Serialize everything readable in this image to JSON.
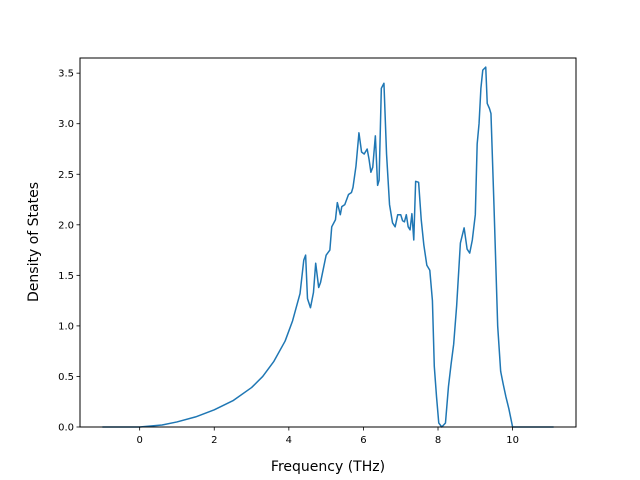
{
  "chart_data": {
    "type": "line",
    "title": "",
    "xlabel": "Frequency (THz)",
    "ylabel": "Density of States",
    "xlim": [
      -1.6,
      11.7
    ],
    "ylim": [
      0,
      3.5
    ],
    "ylim_display": [
      0,
      3.65
    ],
    "xticks": [
      0,
      2,
      4,
      6,
      8,
      10
    ],
    "yticks": [
      0.0,
      0.5,
      1.0,
      1.5,
      2.0,
      2.5,
      3.0,
      3.5
    ],
    "xtick_labels": [
      "0",
      "2",
      "4",
      "6",
      "8",
      "10"
    ],
    "ytick_labels": [
      "0.0",
      "0.5",
      "1.0",
      "1.5",
      "2.0",
      "2.5",
      "3.0",
      "3.5"
    ],
    "grid": false,
    "series": [
      {
        "color": "#1f77b4",
        "x": [
          -1.0,
          -0.5,
          0.0,
          0.3,
          0.6,
          1.0,
          1.5,
          2.0,
          2.5,
          3.0,
          3.3,
          3.6,
          3.9,
          4.1,
          4.3,
          4.4,
          4.45,
          4.5,
          4.58,
          4.66,
          4.72,
          4.8,
          4.85,
          4.9,
          5.0,
          5.1,
          5.15,
          5.25,
          5.3,
          5.38,
          5.42,
          5.5,
          5.6,
          5.68,
          5.72,
          5.8,
          5.88,
          5.95,
          6.02,
          6.1,
          6.15,
          6.2,
          6.25,
          6.32,
          6.38,
          6.42,
          6.48,
          6.55,
          6.62,
          6.7,
          6.78,
          6.85,
          6.92,
          7.0,
          7.05,
          7.1,
          7.15,
          7.2,
          7.25,
          7.3,
          7.35,
          7.4,
          7.48,
          7.55,
          7.62,
          7.7,
          7.78,
          7.85,
          7.9,
          7.96,
          8.02,
          8.1,
          8.2,
          8.28,
          8.35,
          8.42,
          8.5,
          8.6,
          8.7,
          8.78,
          8.85,
          8.92,
          9.0,
          9.05,
          9.1,
          9.15,
          9.2,
          9.28,
          9.32,
          9.38,
          9.42,
          9.5,
          9.55,
          9.6,
          9.68,
          9.75,
          9.82,
          9.9,
          10.0,
          10.1,
          10.2,
          10.5,
          11.1
        ],
        "y": [
          0.0,
          0.0,
          0.0,
          0.01,
          0.02,
          0.05,
          0.1,
          0.17,
          0.26,
          0.39,
          0.5,
          0.65,
          0.85,
          1.05,
          1.32,
          1.65,
          1.7,
          1.27,
          1.18,
          1.33,
          1.62,
          1.38,
          1.43,
          1.52,
          1.7,
          1.75,
          1.98,
          2.05,
          2.22,
          2.1,
          2.18,
          2.2,
          2.3,
          2.32,
          2.37,
          2.58,
          2.91,
          2.72,
          2.7,
          2.75,
          2.65,
          2.52,
          2.57,
          2.88,
          2.39,
          2.44,
          3.35,
          3.4,
          2.7,
          2.2,
          2.02,
          1.98,
          2.1,
          2.1,
          2.04,
          2.03,
          2.1,
          1.98,
          1.95,
          2.11,
          1.85,
          2.43,
          2.42,
          2.05,
          1.8,
          1.6,
          1.55,
          1.25,
          0.6,
          0.3,
          0.04,
          0.0,
          0.04,
          0.4,
          0.62,
          0.82,
          1.2,
          1.82,
          1.97,
          1.76,
          1.72,
          1.85,
          2.1,
          2.8,
          3.0,
          3.35,
          3.53,
          3.56,
          3.2,
          3.15,
          3.1,
          2.2,
          1.6,
          1.0,
          0.55,
          0.42,
          0.3,
          0.18,
          0.0,
          0.0,
          0.0,
          0.0,
          0.0
        ]
      }
    ]
  }
}
